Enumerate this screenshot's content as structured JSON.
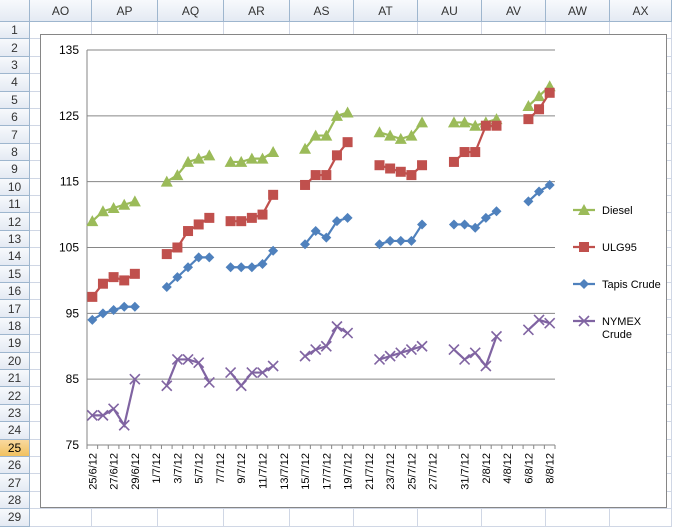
{
  "spreadsheet": {
    "columns": [
      "AO",
      "AP",
      "AQ",
      "AR",
      "AS",
      "AT",
      "AU",
      "AV",
      "AW",
      "AX"
    ],
    "rows": [
      "1",
      "2",
      "3",
      "4",
      "5",
      "6",
      "7",
      "8",
      "9",
      "10",
      "11",
      "12",
      "13",
      "14",
      "15",
      "16",
      "17",
      "18",
      "19",
      "20",
      "21",
      "22",
      "23",
      "24",
      "25",
      "26",
      "27",
      "28",
      "29"
    ],
    "selected_row": "25"
  },
  "chart_data": {
    "type": "line",
    "title": "",
    "xlabel": "",
    "ylabel": "",
    "ylim": [
      75,
      135
    ],
    "yticks": [
      75,
      85,
      95,
      105,
      115,
      125,
      135
    ],
    "grid": true,
    "legend_position": "right",
    "x_tick_labels": [
      "25/6/12",
      "27/6/12",
      "29/6/12",
      "1/7/12",
      "3/7/12",
      "5/7/12",
      "7/7/12",
      "9/7/12",
      "11/7/12",
      "13/7/12",
      "15/7/12",
      "17/7/12",
      "19/7/12",
      "21/7/12",
      "23/7/12",
      "25/7/12",
      "27/7/12",
      "31/7/12",
      "2/8/12",
      "4/8/12",
      "6/8/12",
      "8/8/12"
    ],
    "x_tick_index": [
      0,
      2,
      4,
      6,
      8,
      10,
      12,
      14,
      16,
      18,
      20,
      22,
      24,
      26,
      28,
      30,
      32,
      35,
      37,
      39,
      41,
      43
    ],
    "series": [
      {
        "name": "Diesel",
        "color": "#9bbb59",
        "marker": "triangle",
        "values": [
          109,
          110.5,
          111,
          111.5,
          112,
          null,
          null,
          115,
          116,
          118,
          118.5,
          119,
          null,
          118,
          118,
          118.5,
          118.5,
          119.5,
          null,
          null,
          120,
          122,
          122,
          125,
          125.5,
          null,
          null,
          122.5,
          122,
          121.5,
          122,
          124,
          null,
          null,
          124,
          124,
          123.5,
          124,
          124.5,
          null,
          null,
          126.5,
          128,
          129.5
        ]
      },
      {
        "name": "ULG95",
        "color": "#c0504d",
        "marker": "square",
        "values": [
          97.5,
          99.5,
          100.5,
          100,
          101,
          null,
          null,
          104,
          105,
          107.5,
          108.5,
          109.5,
          null,
          109,
          109,
          109.5,
          110,
          113,
          null,
          null,
          114.5,
          116,
          116,
          119,
          121,
          null,
          null,
          117.5,
          117,
          116.5,
          116,
          117.5,
          null,
          null,
          118,
          119.5,
          119.5,
          123.5,
          123.5,
          null,
          null,
          124.5,
          126,
          128.5
        ]
      },
      {
        "name": "Tapis Crude",
        "color": "#4f81bd",
        "marker": "diamond",
        "values": [
          94,
          95,
          95.5,
          96,
          96,
          null,
          null,
          99,
          100.5,
          102,
          103.5,
          103.5,
          null,
          102,
          102,
          102,
          102.5,
          104.5,
          null,
          null,
          105.5,
          107.5,
          106.5,
          109,
          109.5,
          null,
          null,
          105.5,
          106,
          106,
          106,
          108.5,
          null,
          null,
          108.5,
          108.5,
          108,
          109.5,
          110.5,
          null,
          null,
          112,
          113.5,
          114.5
        ]
      },
      {
        "name": "NYMEX Crude",
        "color": "#8064a2",
        "marker": "x",
        "values": [
          79.5,
          79.5,
          80.5,
          78,
          85,
          null,
          null,
          84,
          88,
          88,
          87.5,
          84.5,
          null,
          86,
          84,
          86,
          86,
          87,
          null,
          null,
          88.5,
          89.5,
          90,
          93,
          92,
          null,
          null,
          88,
          88.5,
          89,
          89.5,
          90,
          null,
          null,
          89.5,
          88,
          89,
          87,
          91.5,
          null,
          null,
          92.5,
          94,
          93.5
        ]
      }
    ]
  }
}
